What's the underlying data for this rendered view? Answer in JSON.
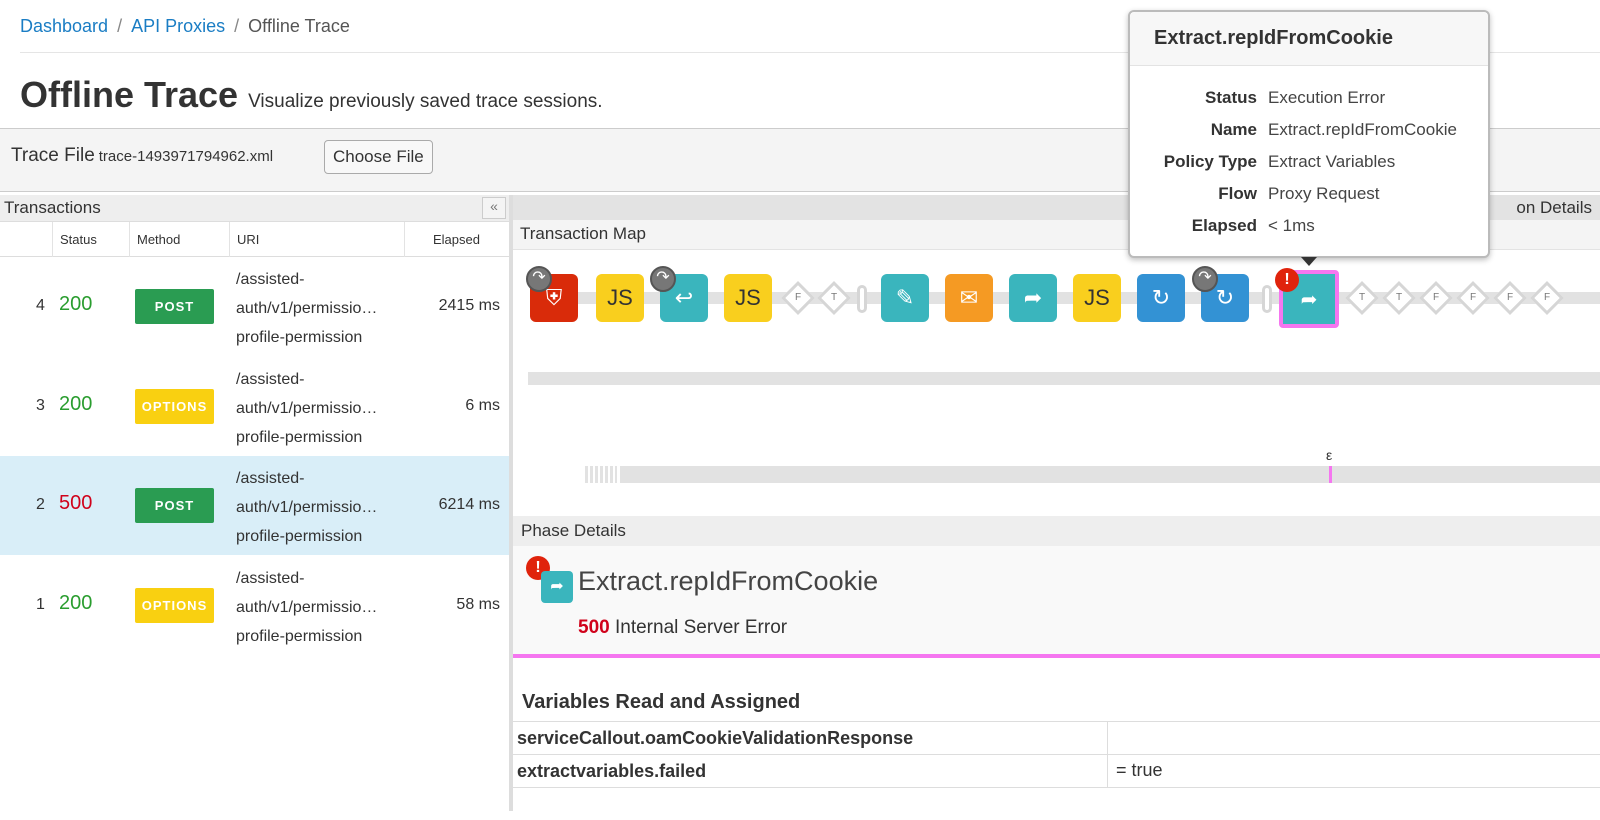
{
  "breadcrumb": [
    {
      "label": "Dashboard"
    },
    {
      "label": "API Proxies"
    },
    {
      "label": "Offline Trace"
    }
  ],
  "header": {
    "title": "Offline Trace",
    "subtitle": "Visualize previously saved trace sessions."
  },
  "trace_file": {
    "label": "Trace File",
    "file_name": "trace-1493971794962.xml",
    "choose_label": "Choose File"
  },
  "transactions": {
    "title": "Transactions",
    "collapse_icon": "«",
    "columns": [
      "Status",
      "Method",
      "URI",
      "Elapsed"
    ],
    "rows": [
      {
        "num": "4",
        "status": "200",
        "method": "POST",
        "uri": [
          "/assisted-",
          "auth/v1/permissio…",
          "profile-permission"
        ],
        "elapsed": "2415 ms"
      },
      {
        "num": "3",
        "status": "200",
        "method": "OPTIONS",
        "uri": [
          "/assisted-",
          "auth/v1/permissio…",
          "profile-permission"
        ],
        "elapsed": "6 ms"
      },
      {
        "num": "2",
        "status": "500",
        "method": "POST",
        "uri": [
          "/assisted-",
          "auth/v1/permissio…",
          "profile-permission"
        ],
        "elapsed": "6214 ms",
        "selected": true
      },
      {
        "num": "1",
        "status": "200",
        "method": "OPTIONS",
        "uri": [
          "/assisted-",
          "auth/v1/permissio…",
          "profile-permission"
        ],
        "elapsed": "58 ms"
      }
    ]
  },
  "right": {
    "tab_partial": "on Details",
    "map_title": "Transaction Map",
    "epsilon": "ε",
    "icon_js": "JS",
    "diamonds_before": [
      "F",
      "T"
    ],
    "diamonds_after": [
      "T",
      "T",
      "F",
      "F",
      "F",
      "F"
    ]
  },
  "phase": {
    "title": "Phase Details",
    "name": "Extract.repIdFromCookie",
    "code": "500",
    "message": "Internal Server Error"
  },
  "variables": {
    "title": "Variables Read and Assigned",
    "rows": [
      {
        "name": "serviceCallout.oamCookieValidationResponse",
        "value": ""
      },
      {
        "name": "extractvariables.failed",
        "value": "= true"
      }
    ]
  },
  "tooltip": {
    "title": "Extract.repIdFromCookie",
    "rows": [
      {
        "k": "Status",
        "v": "Execution Error"
      },
      {
        "k": "Name",
        "v": "Extract.repIdFromCookie"
      },
      {
        "k": "Policy Type",
        "v": "Extract Variables"
      },
      {
        "k": "Flow",
        "v": "Proxy Request"
      },
      {
        "k": "Elapsed",
        "v": "< 1ms"
      }
    ]
  },
  "colors": {
    "accent": "#1a7dc4",
    "ok": "#2a9d2f",
    "error": "#d0021b",
    "highlight": "#f576f0",
    "selected_row": "#d9eef8"
  }
}
